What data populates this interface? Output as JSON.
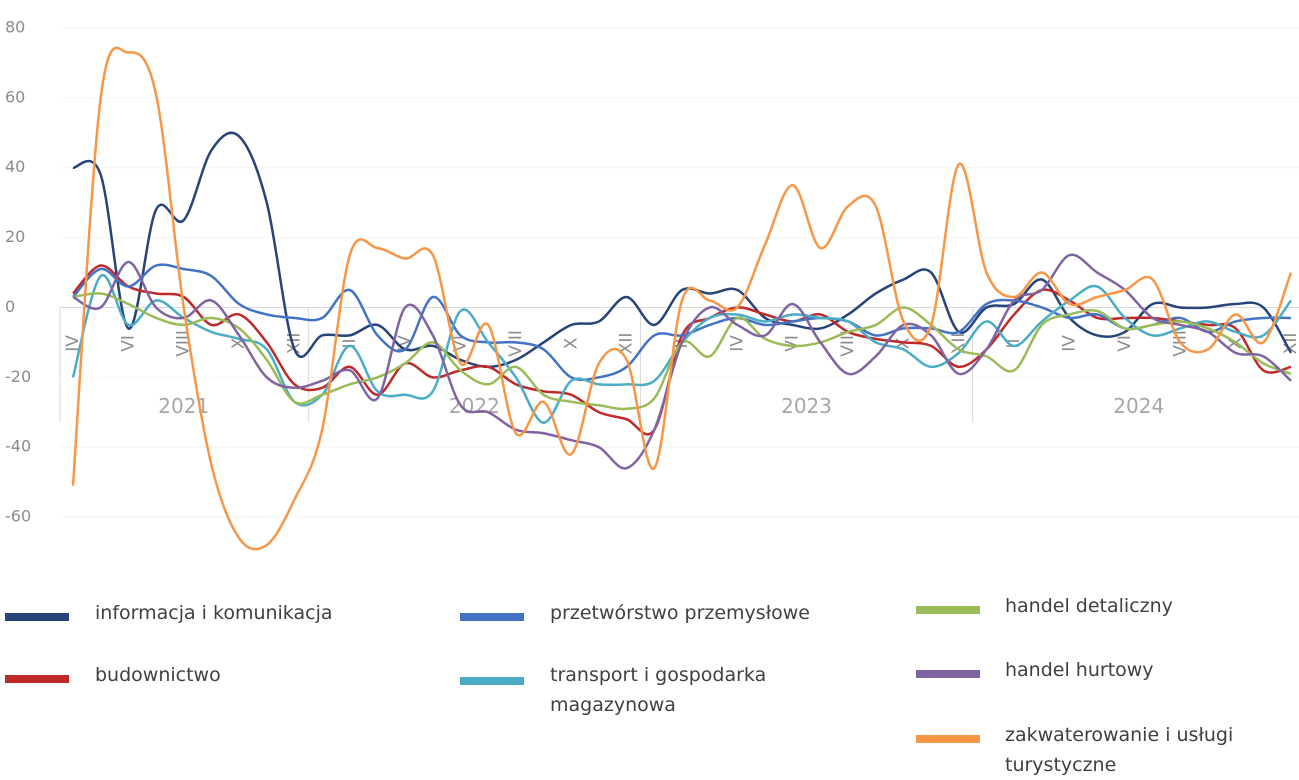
{
  "chart_data": {
    "type": "line",
    "categories": [
      "IV",
      null,
      "VI",
      null,
      "VIII",
      null,
      "X",
      null,
      "XII",
      null,
      "II",
      null,
      "IV",
      null,
      "VI",
      null,
      "VIII",
      null,
      "X",
      null,
      "XII",
      null,
      "II",
      null,
      "IV",
      null,
      "VI",
      null,
      "VIII",
      null,
      "X",
      null,
      "XII",
      null,
      "II",
      null,
      "IV",
      null,
      "VI",
      null,
      "VIII",
      null,
      "X",
      null,
      "XII"
    ],
    "groups": [
      {
        "label": "2021",
        "count": 9
      },
      {
        "label": "2022",
        "count": 12
      },
      {
        "label": "2023",
        "count": 12
      },
      {
        "label": "2024",
        "count": 12
      }
    ],
    "ylim": [
      -70,
      80
    ],
    "yticks": [
      -60,
      -40,
      -20,
      0,
      20,
      40,
      60,
      80
    ],
    "grid": true,
    "series": [
      {
        "name": "informacja i komunikacja",
        "color": "#264478",
        "values": [
          40,
          38,
          -6,
          28,
          25,
          45,
          49,
          30,
          -12,
          -8,
          -8,
          -5,
          -12,
          -11,
          -15,
          -17,
          -15,
          -10,
          -5,
          -4,
          3,
          -5,
          5,
          4,
          5,
          -3,
          -5,
          -6,
          -2,
          4,
          8,
          10,
          -7,
          0,
          1,
          8,
          -3,
          -8,
          -7,
          1,
          0,
          0,
          1,
          0,
          -13
        ]
      },
      {
        "name": "budownictwo",
        "color": "#be2a2a",
        "values": [
          4,
          12,
          6,
          4,
          3,
          -5,
          -2,
          -10,
          -22,
          -23,
          -17,
          -25,
          -16,
          -20,
          -18,
          -17,
          -22,
          -24,
          -25,
          -30,
          -32,
          -35,
          -8,
          -3,
          0,
          -2,
          -4,
          -2,
          -7,
          -9,
          -10,
          -11,
          -17,
          -12,
          -2,
          5,
          2,
          -3,
          -3,
          -3,
          -4,
          -5,
          -6,
          -18,
          -17
        ]
      },
      {
        "name": "przetwórstwo przemysłowe",
        "color": "#4472c4",
        "values": [
          3,
          11,
          6,
          12,
          11,
          9,
          1,
          -2,
          -3,
          -3,
          5,
          -8,
          -12,
          3,
          -8,
          -10,
          -10,
          -12,
          -20,
          -20,
          -17,
          -8,
          -8,
          -5,
          -3,
          -5,
          -4,
          -3,
          -4,
          -8,
          -6,
          -6,
          -7,
          1,
          2,
          0,
          -3,
          -2,
          -6,
          -5,
          -3,
          -7,
          -4,
          -3,
          -3
        ]
      },
      {
        "name": "transport i gospodarka magazynowa",
        "color": "#4bacc6",
        "values": [
          -20,
          9,
          -5,
          2,
          -3,
          -7,
          -9,
          -12,
          -27,
          -25,
          -11,
          -24,
          -25,
          -24,
          -1,
          -10,
          -20,
          -33,
          -21,
          -22,
          -22,
          -21,
          -10,
          -3,
          -2,
          -4,
          -2,
          -3,
          -4,
          -10,
          -12,
          -17,
          -13,
          -4,
          -11,
          -4,
          2,
          6,
          -3,
          -8,
          -6,
          -4,
          -7,
          -8,
          2
        ]
      },
      {
        "name": "handel detaliczny",
        "color": "#9bbb59",
        "values": [
          3,
          4,
          1,
          -3,
          -5,
          -3,
          -6,
          -15,
          -27,
          -25,
          -22,
          -20,
          -16,
          -10,
          -18,
          -22,
          -17,
          -25,
          -27,
          -28,
          -29,
          -26,
          -10,
          -14,
          -3,
          -9,
          -11,
          -10,
          -7,
          -5,
          0,
          -5,
          -12,
          -14,
          -18,
          -5,
          -2,
          -1,
          -6,
          -5,
          -4,
          -6,
          -10,
          -16,
          -19
        ]
      },
      {
        "name": "handel hurtowy",
        "color": "#8064a2",
        "values": [
          3,
          0,
          13,
          0,
          -3,
          2,
          -8,
          -20,
          -23,
          -21,
          -18,
          -26,
          0,
          -8,
          -28,
          -30,
          -35,
          -36,
          -38,
          -40,
          -46,
          -35,
          -10,
          0,
          -5,
          -8,
          1,
          -10,
          -19,
          -14,
          -5,
          -8,
          -19,
          -12,
          2,
          5,
          15,
          10,
          5,
          -3,
          -5,
          -7,
          -13,
          -14,
          -21
        ]
      },
      {
        "name": "zakwaterowanie i usługi turystyczne",
        "color": "#f79646",
        "values": [
          -51,
          60,
          73,
          61,
          0,
          -45,
          -66,
          -68,
          -55,
          -35,
          15,
          17,
          14,
          15,
          -16,
          -5,
          -36,
          -27,
          -42,
          -16,
          -15,
          -46,
          2,
          2,
          0,
          18,
          35,
          17,
          29,
          29,
          -4,
          -5,
          41,
          10,
          3,
          10,
          1,
          3,
          5,
          8,
          -10,
          -12,
          -2,
          -10,
          10
        ]
      }
    ]
  }
}
